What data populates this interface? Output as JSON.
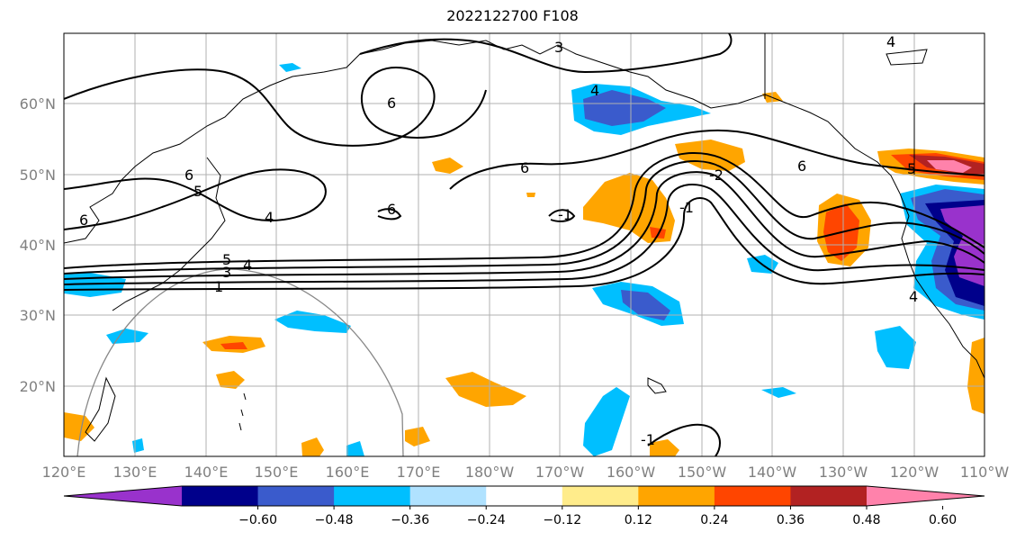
{
  "title": "2022122700 F108",
  "map": {
    "lon_labels": [
      "120°E",
      "130°E",
      "140°E",
      "150°E",
      "160°E",
      "170°E",
      "180°W",
      "170°W",
      "160°W",
      "150°W",
      "140°W",
      "130°W",
      "120°W",
      "110°W"
    ],
    "lat_labels": [
      "20°N",
      "30°N",
      "40°N",
      "50°N",
      "60°N"
    ],
    "contour_labels": [
      "6",
      "5",
      "4",
      "5",
      "4",
      "3",
      "1",
      "6",
      "6",
      "6",
      "3",
      "4",
      "6",
      "-1",
      "-2",
      "-1",
      "6",
      "5",
      "4",
      "-1",
      "4"
    ]
  },
  "colorbar": {
    "colors": [
      "#9932CC",
      "#00008B",
      "#3A5BCC",
      "#00BFFF",
      "#B0E2FF",
      "#FFFFFF",
      "#FFEC8B",
      "#FFA500",
      "#FF4500",
      "#B22222",
      "#FF82AB"
    ],
    "tick_labels": [
      "−0.60",
      "−0.48",
      "−0.36",
      "−0.24",
      "−0.12",
      "0.12",
      "0.24",
      "0.36",
      "0.48",
      "0.60"
    ]
  },
  "chart_data": {
    "type": "heatmap",
    "title": "2022122700 F108",
    "xlabel": "",
    "ylabel": "",
    "xlim": [
      120,
      250
    ],
    "ylim": [
      10,
      70
    ],
    "levels": [
      -0.6,
      -0.48,
      -0.36,
      -0.24,
      -0.12,
      0.12,
      0.24,
      0.36,
      0.48,
      0.6
    ],
    "grid": true,
    "colorbar": "bottom, extends both"
  }
}
